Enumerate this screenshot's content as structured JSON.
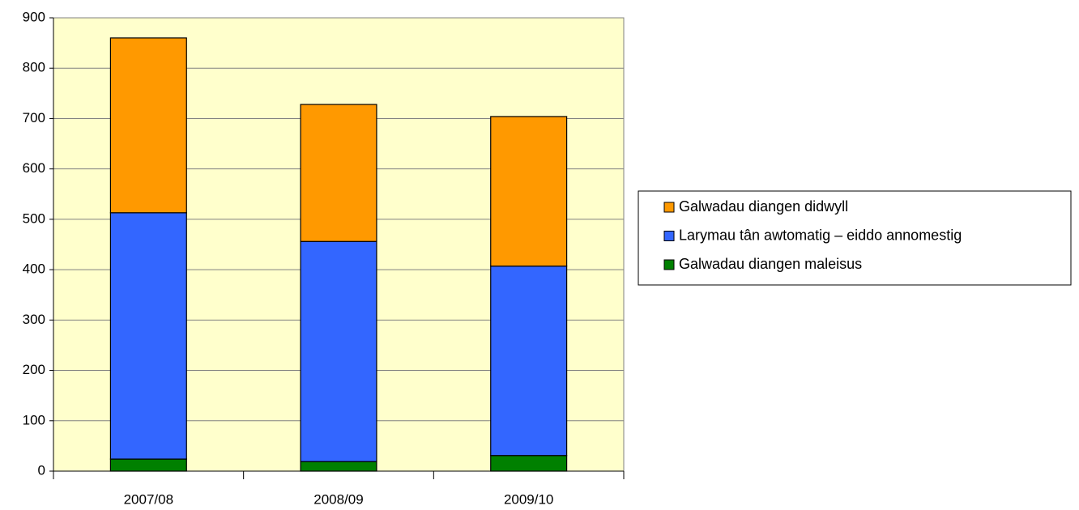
{
  "chart_data": {
    "type": "stacked_bar",
    "categories": [
      "2007/08",
      "2008/09",
      "2009/10"
    ],
    "series": [
      {
        "name": "Galwadau diangen maleisus",
        "color": "#008000",
        "values": [
          24,
          19,
          31
        ]
      },
      {
        "name": "Larymau tân awtomatig –  eiddo annomestig",
        "color": "#3366ff",
        "values": [
          489,
          437,
          376
        ]
      },
      {
        "name": "Galwadau diangen didwyll",
        "color": "#ff9900",
        "values": [
          347,
          272,
          297
        ]
      }
    ],
    "ylim": [
      0,
      900
    ],
    "yticks": [
      0,
      100,
      200,
      300,
      400,
      500,
      600,
      700,
      800,
      900
    ],
    "grid": true,
    "legend": "right"
  }
}
